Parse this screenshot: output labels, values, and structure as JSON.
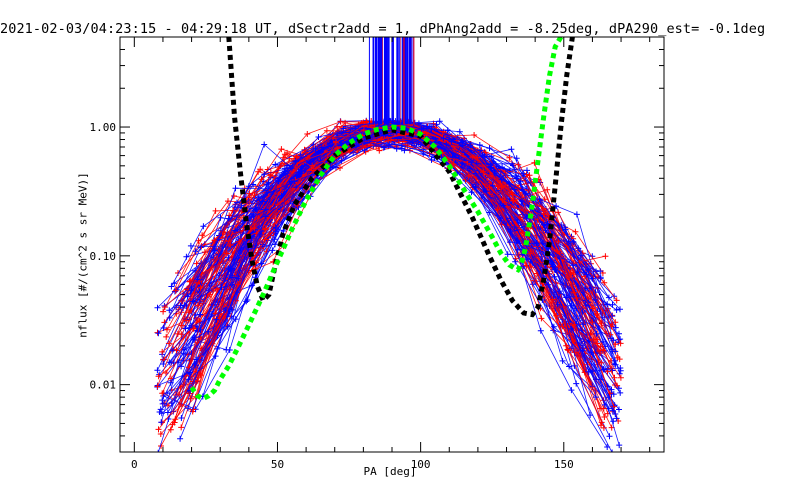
{
  "chart_data": {
    "type": "line",
    "title": "2021-02-03/04:23:15 - 04:29:18 UT, dSectr2add = 1, dPhAng2add = -8.25deg, dPA290_est=  -0.1deg",
    "xlabel": "PA [deg]",
    "ylabel": "nflux [#/(cm^2 s sr MeV)]",
    "xlim": [
      -5,
      185
    ],
    "ylim": [
      0.003,
      5
    ],
    "yscale": "log",
    "xticks": [
      0,
      50,
      100,
      150
    ],
    "yticks": [
      {
        "value": 0.01,
        "label": "0.01"
      },
      {
        "value": 0.1,
        "label": "0.10"
      },
      {
        "value": 1.0,
        "label": "1.00"
      }
    ],
    "colors": {
      "red": "#ff0000",
      "blue": "#0000ff",
      "green": "#00ff00",
      "black": "#000000"
    },
    "series": [
      {
        "color": "black",
        "style": "thick-dashed",
        "x": [
          33,
          35,
          37,
          39,
          41,
          43,
          45,
          47,
          49,
          52,
          56,
          62,
          70,
          80,
          90,
          100,
          110,
          118,
          124,
          128,
          132,
          136,
          139,
          141,
          143,
          145,
          147,
          149,
          151,
          153
        ],
        "y": [
          5.0,
          1.2,
          0.45,
          0.19,
          0.095,
          0.058,
          0.045,
          0.05,
          0.08,
          0.15,
          0.25,
          0.4,
          0.6,
          0.82,
          0.95,
          0.85,
          0.45,
          0.2,
          0.1,
          0.065,
          0.045,
          0.036,
          0.035,
          0.04,
          0.065,
          0.13,
          0.35,
          1.0,
          2.5,
          5.0
        ]
      },
      {
        "color": "green",
        "style": "thick-dashed",
        "x": [
          20,
          22,
          24,
          26,
          28,
          30,
          33,
          36,
          40,
          45,
          50,
          55,
          60,
          65,
          70,
          75,
          80,
          85,
          90,
          95,
          100,
          105,
          110,
          115,
          120,
          125,
          128,
          131,
          133,
          134,
          135,
          136,
          137,
          139,
          141,
          143,
          145,
          147,
          149
        ],
        "y": [
          0.0095,
          0.0082,
          0.0078,
          0.0082,
          0.009,
          0.011,
          0.014,
          0.019,
          0.029,
          0.05,
          0.09,
          0.16,
          0.27,
          0.42,
          0.6,
          0.75,
          0.88,
          0.96,
          1.0,
          0.98,
          0.88,
          0.7,
          0.5,
          0.33,
          0.22,
          0.14,
          0.105,
          0.085,
          0.08,
          0.078,
          0.085,
          0.1,
          0.13,
          0.25,
          0.55,
          1.2,
          2.5,
          4.2,
          5.0
        ]
      }
    ]
  }
}
